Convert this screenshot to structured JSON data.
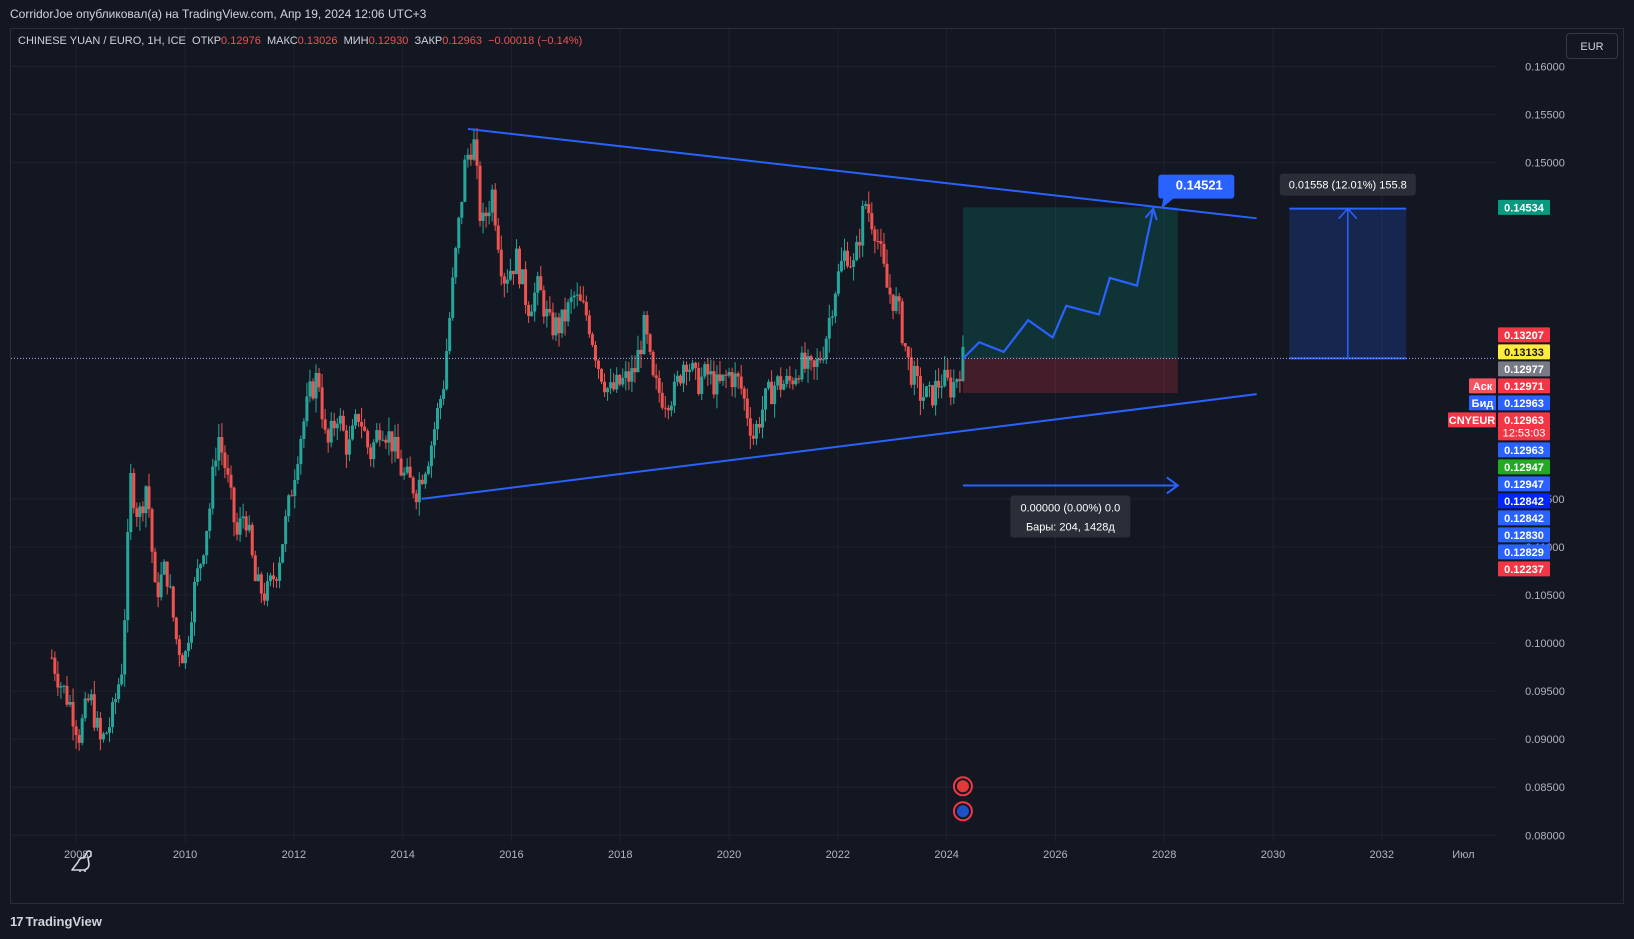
{
  "header": {
    "published": "CorridorJoe опубликовал(а) на TradingView.com, Апр 19, 2024 12:06 UTC+3"
  },
  "legend": {
    "symbol": "CHINESE YUAN / EURO, 1Н, ICE",
    "open_label": "ОТКР",
    "open": "0.12976",
    "high_label": "МАКС",
    "high": "0.13026",
    "low_label": "МИН",
    "low": "0.12930",
    "close_label": "ЗАКР",
    "close": "0.12963",
    "change": "−0.00018 (−0.14%)"
  },
  "currency_button": "EUR",
  "footer": {
    "brand": "TradingView"
  },
  "colors": {
    "background": "#131722",
    "grid": "#1e222d",
    "up": "#26a69a",
    "down": "#ef5350",
    "trendline": "#2962ff",
    "text": "#b2b5be"
  },
  "chart_data": {
    "type": "candlestick",
    "title": "CHINESE YUAN / EURO, 1Н, ICE",
    "x_ticks": [
      "2008",
      "2010",
      "2012",
      "2014",
      "2016",
      "2018",
      "2020",
      "2022",
      "2024",
      "2026",
      "2028",
      "2030",
      "2032",
      "Июл"
    ],
    "x_tick_years": [
      2008,
      2010,
      2012,
      2014,
      2016,
      2018,
      2020,
      2022,
      2024,
      2026,
      2028,
      2030,
      2032,
      2033.5
    ],
    "xlim": [
      2006.8,
      2034.1
    ],
    "y_ticks": [
      "0.16000",
      "0.15500",
      "0.15000",
      "0.11500",
      "0.11000",
      "0.10500",
      "0.10000",
      "0.09500",
      "0.09000",
      "0.08500",
      "0.08000"
    ],
    "ylim": [
      0.0793,
      0.1639
    ],
    "grid": true,
    "price_path": [
      [
        2007.55,
        0.0985
      ],
      [
        2007.7,
        0.096
      ],
      [
        2007.9,
        0.0935
      ],
      [
        2008.05,
        0.0905
      ],
      [
        2008.25,
        0.0945
      ],
      [
        2008.45,
        0.0895
      ],
      [
        2008.65,
        0.092
      ],
      [
        2008.85,
        0.098
      ],
      [
        2009.0,
        0.117
      ],
      [
        2009.15,
        0.113
      ],
      [
        2009.3,
        0.117
      ],
      [
        2009.45,
        0.105
      ],
      [
        2009.65,
        0.108
      ],
      [
        2009.85,
        0.1
      ],
      [
        2010.0,
        0.0985
      ],
      [
        2010.15,
        0.105
      ],
      [
        2010.3,
        0.109
      ],
      [
        2010.45,
        0.114
      ],
      [
        2010.6,
        0.122
      ],
      [
        2010.75,
        0.118
      ],
      [
        2010.95,
        0.111
      ],
      [
        2011.1,
        0.114
      ],
      [
        2011.3,
        0.106
      ],
      [
        2011.5,
        0.105
      ],
      [
        2011.7,
        0.108
      ],
      [
        2011.9,
        0.114
      ],
      [
        2012.1,
        0.121
      ],
      [
        2012.3,
        0.126
      ],
      [
        2012.45,
        0.128
      ],
      [
        2012.6,
        0.12
      ],
      [
        2012.8,
        0.124
      ],
      [
        2013.0,
        0.12
      ],
      [
        2013.2,
        0.124
      ],
      [
        2013.4,
        0.1195
      ],
      [
        2013.6,
        0.123
      ],
      [
        2013.8,
        0.121
      ],
      [
        2014.0,
        0.1175
      ],
      [
        2014.25,
        0.116
      ],
      [
        2014.5,
        0.12
      ],
      [
        2014.75,
        0.127
      ],
      [
        2014.95,
        0.139
      ],
      [
        2015.15,
        0.15
      ],
      [
        2015.3,
        0.1525
      ],
      [
        2015.45,
        0.143
      ],
      [
        2015.65,
        0.147
      ],
      [
        2015.85,
        0.138
      ],
      [
        2016.1,
        0.14
      ],
      [
        2016.3,
        0.135
      ],
      [
        2016.5,
        0.137
      ],
      [
        2016.7,
        0.133
      ],
      [
        2016.9,
        0.133
      ],
      [
        2017.15,
        0.136
      ],
      [
        2017.4,
        0.134
      ],
      [
        2017.6,
        0.129
      ],
      [
        2017.8,
        0.126
      ],
      [
        2018.0,
        0.127
      ],
      [
        2018.25,
        0.128
      ],
      [
        2018.45,
        0.133
      ],
      [
        2018.6,
        0.127
      ],
      [
        2018.8,
        0.1255
      ],
      [
        2019.0,
        0.126
      ],
      [
        2019.2,
        0.13
      ],
      [
        2019.4,
        0.127
      ],
      [
        2019.6,
        0.128
      ],
      [
        2019.8,
        0.1265
      ],
      [
        2020.0,
        0.128
      ],
      [
        2020.2,
        0.127
      ],
      [
        2020.45,
        0.1215
      ],
      [
        2020.65,
        0.125
      ],
      [
        2020.85,
        0.127
      ],
      [
        2021.1,
        0.127
      ],
      [
        2021.3,
        0.129
      ],
      [
        2021.55,
        0.128
      ],
      [
        2021.75,
        0.131
      ],
      [
        2021.95,
        0.137
      ],
      [
        2022.15,
        0.141
      ],
      [
        2022.3,
        0.139
      ],
      [
        2022.5,
        0.146
      ],
      [
        2022.7,
        0.143
      ],
      [
        2022.9,
        0.137
      ],
      [
        2023.1,
        0.135
      ],
      [
        2023.3,
        0.129
      ],
      [
        2023.5,
        0.126
      ],
      [
        2023.7,
        0.1255
      ],
      [
        2023.9,
        0.1275
      ],
      [
        2024.1,
        0.1265
      ],
      [
        2024.3,
        0.1296
      ]
    ],
    "trendlines": [
      {
        "x1": 2015.2,
        "y1": 0.1535,
        "x2": 2029.7,
        "y2": 0.1442
      },
      {
        "x1": 2014.35,
        "y1": 0.115,
        "x2": 2029.7,
        "y2": 0.1259
      }
    ],
    "projection_path": [
      [
        2024.3,
        0.1296
      ],
      [
        2024.6,
        0.1313
      ],
      [
        2025.05,
        0.1303
      ],
      [
        2025.5,
        0.1336
      ],
      [
        2025.95,
        0.1318
      ],
      [
        2026.2,
        0.1351
      ],
      [
        2026.8,
        0.1342
      ],
      [
        2027.0,
        0.138
      ],
      [
        2027.5,
        0.1372
      ],
      [
        2027.8,
        0.14521
      ]
    ],
    "position": {
      "x_start": 2024.3,
      "x_end": 2028.25,
      "entry": 0.12963,
      "target": 0.14534,
      "stop": 0.12602
    },
    "range_measure": {
      "x_start": 2030.3,
      "x_end": 2032.45,
      "from": 0.12963,
      "to": 0.14521,
      "label": "0.01558 (12.01%) 155.8"
    },
    "date_range": {
      "x_start": 2024.3,
      "x_end": 2028.25,
      "y": 0.1164,
      "label_line1": "0.00000 (0.00%) 0.0",
      "label_line2": "Бары: 204, 1428д"
    },
    "target_label": {
      "x": 2027.8,
      "y": 0.14521,
      "text": "0.14521"
    },
    "current_price_y": 0.12963,
    "price_labels": [
      {
        "text": "0.14534",
        "value": 0.14534,
        "bg": "#089981",
        "fg": "#ffffff"
      },
      {
        "text": "0.13207",
        "value": 0.13207,
        "bg": "#f23645",
        "fg": "#ffffff"
      },
      {
        "text": "0.13133",
        "value": 0.13133,
        "bg": "#ffeb3b",
        "fg": "#131722"
      },
      {
        "text": "0.12977",
        "value": 0.12977,
        "bg": "#787b86",
        "fg": "#ffffff"
      },
      {
        "text": "0.12971",
        "value": 0.12971,
        "bg": "#f23645",
        "fg": "#ffffff",
        "tag": "Аск",
        "tag_bg": "#f7525f"
      },
      {
        "text": "0.12963",
        "value": 0.12963,
        "bg": "#2962ff",
        "fg": "#ffffff",
        "tag": "Бид",
        "tag_bg": "#2962ff"
      },
      {
        "text": "0.12963",
        "value": 0.12963,
        "bg": "#f23645",
        "fg": "#ffffff",
        "tag": "CNYEUR",
        "tag_bg": "#f23645",
        "sub": "12:53:03"
      },
      {
        "text": "0.12963",
        "value": 0.12963,
        "bg": "#2962ff",
        "fg": "#ffffff"
      },
      {
        "text": "0.12947",
        "value": 0.12947,
        "bg": "#22ab22",
        "fg": "#ffffff"
      },
      {
        "text": "0.12947",
        "value": 0.12947,
        "bg": "#2962ff",
        "fg": "#ffffff"
      },
      {
        "text": "0.12842",
        "value": 0.12842,
        "bg": "#0026ff",
        "fg": "#ffffff"
      },
      {
        "text": "0.12842",
        "value": 0.12842,
        "bg": "#2962ff",
        "fg": "#ffffff"
      },
      {
        "text": "0.12830",
        "value": 0.1283,
        "bg": "#2962ff",
        "fg": "#ffffff"
      },
      {
        "text": "0.12829",
        "value": 0.12829,
        "bg": "#2962ff",
        "fg": "#ffffff"
      },
      {
        "text": "0.12237",
        "value": 0.12237,
        "bg": "#f23645",
        "fg": "#ffffff"
      }
    ],
    "event_markers": [
      {
        "x": 2024.3,
        "y": 0.0851,
        "kind": "flag-cn-icon"
      },
      {
        "x": 2024.3,
        "y": 0.0825,
        "kind": "flag-eu-icon"
      }
    ]
  }
}
